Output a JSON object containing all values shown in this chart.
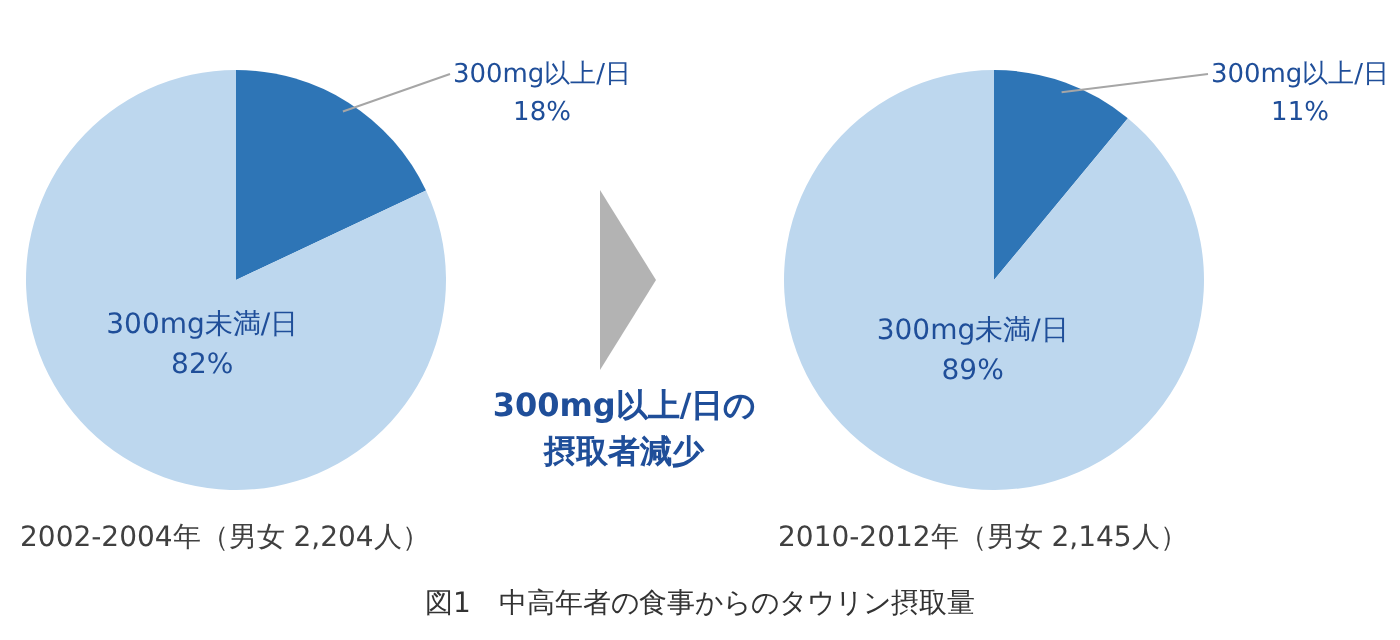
{
  "chart_data": [
    {
      "type": "pie",
      "title": "2002-2004年（男女 2,204人）",
      "categories": [
        "300mg以上/日",
        "300mg未満/日"
      ],
      "values": [
        18,
        82
      ],
      "colors": [
        "#2e75b6",
        "#bdd7ee"
      ],
      "value_labels": [
        "18%",
        "82%"
      ]
    },
    {
      "type": "other",
      "annotations": [
        "300mg以上/日の",
        "摂取者減少",
        "図1　中高年者の食事からのタウリン摂取量"
      ]
    },
    {
      "type": "pie",
      "title": "2010-2012年（男女 2,145人）",
      "categories": [
        "300mg以上/日",
        "300mg未満/日"
      ],
      "values": [
        11,
        89
      ],
      "colors": [
        "#2e75b6",
        "#bdd7ee"
      ],
      "value_labels": [
        "11%",
        "89%"
      ]
    }
  ]
}
